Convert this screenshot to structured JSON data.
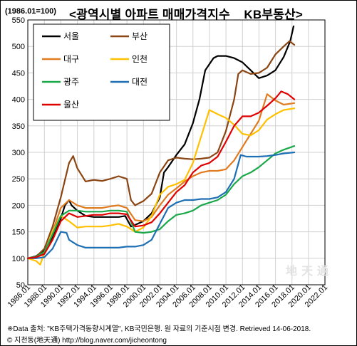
{
  "header": {
    "unit": "(1986.01=100)",
    "title": "<광역시별 아파트 매매가격지수 _ KB부동산>"
  },
  "footer": {
    "note": "※Data 출처: \"KB주택가격동향시계열\", KB국민은행. 원 자료의 기준시점 변경. Retrieved 14-06-2018.",
    "credit": "© 지천동(地天通)  http://blog.naver.com/jicheontong"
  },
  "watermark": "地天通",
  "colors": {
    "서울": "#000000",
    "부산": "#8b4513",
    "대구": "#e07b20",
    "인천": "#ffc000",
    "광주": "#1aa84a",
    "대전": "#1f6fb4",
    "울산": "#e00000"
  },
  "chart_data": {
    "type": "line",
    "title": "<광역시별 아파트 매매가격지수 _ KB부동산>",
    "ylabel": "(1986.01=100)",
    "xlabel": "",
    "ylim": [
      50,
      550
    ],
    "yticks": [
      50,
      100,
      150,
      200,
      250,
      300,
      350,
      400,
      450,
      500,
      550
    ],
    "xlim": [
      1986.0,
      2022.0
    ],
    "xticks": [
      "1986.01",
      "1988.01",
      "1990.01",
      "1992.01",
      "1994.01",
      "1996.01",
      "1998.01",
      "2000.01",
      "2002.01",
      "2004.01",
      "2006.01",
      "2008.01",
      "2010.01",
      "2012.01",
      "2014.01",
      "2016.01",
      "2018.01",
      "2020.01",
      "2022.01"
    ],
    "grid": true,
    "legend_position": "top-left",
    "series": [
      {
        "name": "서울",
        "x": [
          1986.0,
          1987.0,
          1988.0,
          1989.0,
          1990.0,
          1990.5,
          1991.0,
          1991.3,
          1992.0,
          1993.0,
          1994.0,
          1995.0,
          1996.0,
          1997.0,
          1997.8,
          1998.5,
          1999.0,
          2000.0,
          2001.0,
          2002.0,
          2002.5,
          2003.0,
          2004.0,
          2005.0,
          2006.0,
          2006.8,
          2007.5,
          2008.5,
          2009.0,
          2010.0,
          2011.0,
          2012.0,
          2013.0,
          2014.0,
          2015.0,
          2016.0,
          2017.0,
          2017.8,
          2018.2
        ],
        "y": [
          100,
          104,
          115,
          140,
          175,
          200,
          210,
          200,
          190,
          180,
          178,
          178,
          178,
          178,
          180,
          160,
          163,
          170,
          185,
          215,
          262,
          272,
          295,
          315,
          355,
          400,
          455,
          478,
          482,
          482,
          478,
          470,
          455,
          440,
          445,
          455,
          480,
          510,
          538
        ]
      },
      {
        "name": "부산",
        "x": [
          1986.0,
          1987.0,
          1988.0,
          1989.0,
          1990.0,
          1991.0,
          1991.5,
          1992.0,
          1993.0,
          1994.0,
          1995.0,
          1996.0,
          1997.0,
          1998.0,
          1998.5,
          1999.0,
          2000.0,
          2001.0,
          2002.0,
          2003.0,
          2004.0,
          2005.0,
          2006.0,
          2007.0,
          2008.0,
          2009.0,
          2010.0,
          2011.0,
          2011.5,
          2012.0,
          2013.0,
          2014.0,
          2015.0,
          2016.0,
          2017.0,
          2017.7,
          2018.3
        ],
        "y": [
          100,
          103,
          118,
          160,
          215,
          280,
          293,
          270,
          245,
          248,
          246,
          250,
          255,
          250,
          210,
          200,
          208,
          222,
          262,
          285,
          290,
          288,
          287,
          288,
          290,
          300,
          340,
          400,
          448,
          455,
          448,
          450,
          460,
          485,
          500,
          510,
          503
        ]
      },
      {
        "name": "대구",
        "x": [
          1986.0,
          1987.0,
          1988.0,
          1989.0,
          1990.0,
          1991.0,
          1992.0,
          1993.0,
          1994.0,
          1995.0,
          1996.0,
          1997.0,
          1998.0,
          1999.0,
          2000.0,
          2001.0,
          2002.0,
          2003.0,
          2004.0,
          2005.0,
          2006.0,
          2007.0,
          2008.0,
          2009.0,
          2010.0,
          2011.0,
          2012.0,
          2013.0,
          2014.0,
          2015.0,
          2016.0,
          2017.0,
          2018.3
        ],
        "y": [
          100,
          103,
          110,
          150,
          195,
          210,
          200,
          195,
          195,
          195,
          198,
          200,
          195,
          172,
          170,
          178,
          200,
          220,
          232,
          245,
          255,
          262,
          265,
          265,
          268,
          285,
          310,
          335,
          360,
          410,
          398,
          390,
          393
        ]
      },
      {
        "name": "인천",
        "x": [
          1986.0,
          1987.0,
          1987.5,
          1988.0,
          1989.0,
          1990.0,
          1991.0,
          1992.0,
          1993.0,
          1994.0,
          1995.0,
          1996.0,
          1997.0,
          1998.0,
          1999.0,
          2000.0,
          2001.0,
          2002.0,
          2003.0,
          2004.0,
          2005.0,
          2006.0,
          2007.0,
          2008.0,
          2009.0,
          2010.0,
          2011.0,
          2012.0,
          2013.0,
          2014.0,
          2015.0,
          2016.0,
          2017.0,
          2018.3
        ],
        "y": [
          100,
          95,
          88,
          110,
          150,
          180,
          170,
          158,
          160,
          160,
          160,
          162,
          165,
          160,
          150,
          158,
          180,
          220,
          235,
          240,
          248,
          280,
          330,
          380,
          372,
          365,
          352,
          335,
          332,
          342,
          362,
          372,
          380,
          383
        ]
      },
      {
        "name": "광주",
        "x": [
          1986.0,
          1987.0,
          1988.0,
          1989.0,
          1990.0,
          1991.0,
          1992.0,
          1993.0,
          1994.0,
          1995.0,
          1996.0,
          1997.0,
          1998.0,
          1999.0,
          2000.0,
          2001.0,
          2002.0,
          2003.0,
          2004.0,
          2005.0,
          2006.0,
          2007.0,
          2008.0,
          2009.0,
          2010.0,
          2011.0,
          2012.0,
          2013.0,
          2014.0,
          2015.0,
          2016.0,
          2017.0,
          2018.3
        ],
        "y": [
          100,
          103,
          112,
          145,
          180,
          190,
          190,
          188,
          188,
          188,
          190,
          190,
          188,
          150,
          148,
          150,
          155,
          170,
          182,
          185,
          190,
          200,
          205,
          210,
          220,
          240,
          255,
          262,
          272,
          285,
          298,
          305,
          312
        ]
      },
      {
        "name": "대전",
        "x": [
          1986.0,
          1987.0,
          1988.0,
          1989.0,
          1990.0,
          1990.7,
          1991.0,
          1992.0,
          1993.0,
          1994.0,
          1995.0,
          1996.0,
          1997.0,
          1998.0,
          1999.0,
          2000.0,
          2001.0,
          2002.0,
          2003.0,
          2004.0,
          2005.0,
          2006.0,
          2007.0,
          2008.0,
          2009.0,
          2010.0,
          2011.0,
          2011.8,
          2012.5,
          2013.0,
          2014.0,
          2015.0,
          2016.0,
          2017.0,
          2018.3
        ],
        "y": [
          100,
          100,
          102,
          118,
          150,
          148,
          135,
          125,
          120,
          120,
          120,
          120,
          120,
          122,
          122,
          125,
          135,
          165,
          195,
          205,
          210,
          210,
          212,
          212,
          215,
          225,
          250,
          295,
          292,
          292,
          292,
          293,
          295,
          298,
          300
        ]
      },
      {
        "name": "울산",
        "x": [
          1986.0,
          1987.0,
          1988.0,
          1989.0,
          1990.0,
          1991.0,
          1992.0,
          1993.0,
          1994.0,
          1995.0,
          1996.0,
          1997.0,
          1998.0,
          1999.0,
          2000.0,
          2001.0,
          2002.0,
          2003.0,
          2004.0,
          2005.0,
          2006.0,
          2007.0,
          2008.0,
          2009.0,
          2010.0,
          2011.0,
          2012.0,
          2013.0,
          2014.0,
          2015.0,
          2016.0,
          2016.7,
          2017.5,
          2018.3
        ],
        "y": [
          100,
          102,
          108,
          135,
          170,
          185,
          178,
          180,
          182,
          182,
          185,
          185,
          183,
          160,
          162,
          168,
          185,
          205,
          225,
          238,
          262,
          275,
          280,
          292,
          320,
          350,
          368,
          368,
          375,
          388,
          402,
          415,
          410,
          400
        ]
      }
    ]
  }
}
